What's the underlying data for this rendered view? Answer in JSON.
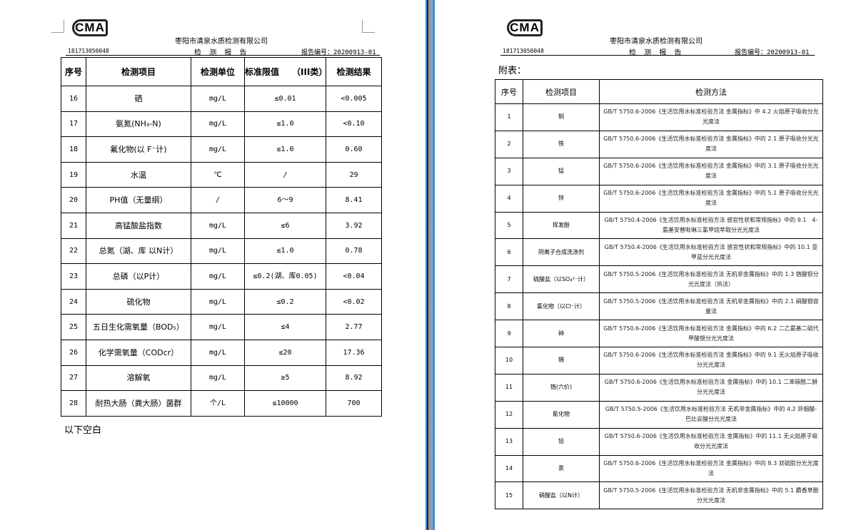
{
  "header": {
    "logo": "CMA",
    "company": "枣阳市清泉水质检测有限公司",
    "cert_no": "181713050048",
    "doc_title": "检 测 报 告",
    "report_no": "报告编号：20200913-01"
  },
  "left_table": {
    "columns": [
      "序号",
      "检测项目",
      "检测单位",
      "标准限值　　（III类）",
      "检测结果"
    ],
    "rows": [
      [
        "16",
        "硒",
        "mg/L",
        "≤0.01",
        "<0.005"
      ],
      [
        "17",
        "氨氮(NH₃-N)",
        "mg/L",
        "≤1.0",
        "<0.10"
      ],
      [
        "18",
        "氟化物(以 F⁻计)",
        "mg/L",
        "≤1.0",
        "0.60"
      ],
      [
        "19",
        "水温",
        "℃",
        "/",
        "29"
      ],
      [
        "20",
        "PH值（无量纲）",
        "/",
        "6～9",
        "8.41"
      ],
      [
        "21",
        "高锰酸盐指数",
        "mg/L",
        "≤6",
        "3.92"
      ],
      [
        "22",
        "总氮（湖、库 以N计）",
        "mg/L",
        "≤1.0",
        "0.78"
      ],
      [
        "23",
        "总磷（以P计）",
        "mg/L",
        "≤0.2(湖、库0.05)",
        "<0.04"
      ],
      [
        "24",
        "硫化物",
        "mg/L",
        "≤0.2",
        "<0.02"
      ],
      [
        "25",
        "五日生化需氧量（BOD₅）",
        "mg/L",
        "≤4",
        "2.77"
      ],
      [
        "26",
        "化学需氧量（CODcr）",
        "mg/L",
        "≤20",
        "17.36"
      ],
      [
        "27",
        "溶解氧",
        "mg/L",
        "≥5",
        "8.92"
      ],
      [
        "28",
        "耐热大肠（粪大肠）菌群",
        "个/L",
        "≤10000",
        "700"
      ]
    ],
    "footer": "以下空白"
  },
  "right_page": {
    "caption": "附表：",
    "columns": [
      "序号",
      "检测项目",
      "检测方法"
    ],
    "rows": [
      [
        "1",
        "铜",
        "GB/T 5750.6-2006《生活饮用水标准检验方法 金属指标》中 4.2 火焰原子吸收分光光度法"
      ],
      [
        "2",
        "铁",
        "GB/T 5750.6-2006《生活饮用水标准检验方法 金属指标》中的 2.1 原子吸收分光光度法"
      ],
      [
        "3",
        "锰",
        "GB/T 5750.6-2006《生活饮用水标准检验方法 金属指标》中的 3.1 原子吸收分光光度法"
      ],
      [
        "4",
        "锌",
        "GB/T 5750.6-2006《生活饮用水标准检验方法 金属指标》中的 5.1 原子吸收分光光度法"
      ],
      [
        "5",
        "挥发酚",
        "GB/T 5750.4-2006《生活饮用水标准检验方法 感官性状和常规指标》中的 9.1　4-氨基安替吡啉三氯甲烷萃取分光光度法"
      ],
      [
        "6",
        "阴离子合成洗涤剂",
        "GB/T 5750.4-2006《生活饮用水标准检验方法 感官性状和常规指标》中的 10.1 亚甲蓝分光光度法"
      ],
      [
        "7",
        "硫酸盐（以SO₄²⁻计）",
        "GB/T 5750.5-2006《生活饮用水标准检验方法 无机非金属指标》中的 1.3 铬酸钡分光光度法（热法）"
      ],
      [
        "8",
        "氯化物（以Cl⁻计）",
        "GB/T 5750.5-2006《生活饮用水标准检验方法 无机非金属指标》中的 2.1 硝酸银容量法"
      ],
      [
        "9",
        "砷",
        "GB/T 5750.6-2006《生活饮用水标准检验方法 金属指标》中的 6.2 二乙氨基二硫代甲酸银分光光度法"
      ],
      [
        "10",
        "镉",
        "GB/T 5750.6-2006《生活饮用水标准检验方法 金属指标》中的 9.1 无火焰原子吸收分光光度法"
      ],
      [
        "11",
        "铬(六价)",
        "GB/T 5750.6-2006《生活饮用水标准检验方法 金属指标》中的 10.1 二苯碳酰二肼分光光度法"
      ],
      [
        "12",
        "氰化物",
        "GB/T 5750.5-2006《生活饮用水标准检验方法 无机非金属指标》中的 4.2 异烟酸-巴比妥酸分光光度法"
      ],
      [
        "13",
        "铅",
        "GB/T 5750.6-2006《生活饮用水标准检验方法 金属指标》中的 11.1 无火焰原子吸收分光光度法"
      ],
      [
        "14",
        "汞",
        "GB/T 5750.6-2006《生活饮用水标准检验方法 金属指标》中的 8.3 双硫腙分光光度法"
      ],
      [
        "15",
        "硝酸盐（以N计）",
        "GB/T 5750.5-2006《生活饮用水标准检验方法 无机非金属指标》中的 5.1 麝香草酚分光光度法"
      ]
    ]
  }
}
